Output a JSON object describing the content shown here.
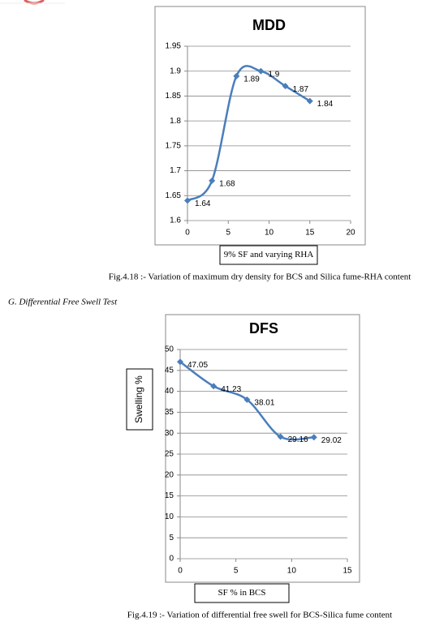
{
  "document": {
    "caption_1": "Fig.4.18 :- Variation of maximum dry density for BCS and Silica fume-RHA content",
    "section_heading": "G.   Differential Free Swell Test",
    "caption_2": "Fig.4.19 :- Variation of differential free swell for BCS-Silica fume content"
  },
  "chart_data": [
    {
      "type": "line",
      "title": "MDD",
      "x_label": "9% SF and varying RHA",
      "x": [
        0,
        3,
        6,
        9,
        12,
        15
      ],
      "values": [
        1.64,
        1.68,
        1.89,
        1.9,
        1.87,
        1.84
      ],
      "color": "#4a7ebb",
      "xlim": [
        0,
        20
      ],
      "xticks": [
        0,
        5,
        10,
        15,
        20
      ],
      "ylim": [
        1.6,
        1.95
      ],
      "yticks": [
        1.6,
        1.65,
        1.7,
        1.75,
        1.8,
        1.85,
        1.9,
        1.95
      ],
      "grid": true
    },
    {
      "type": "line",
      "title": "DFS",
      "x_label": "SF %  in BCS",
      "y_label": "Swelling %",
      "x": [
        0,
        3,
        6,
        9,
        12
      ],
      "values": [
        47.05,
        41.23,
        38.01,
        29.16,
        29.02
      ],
      "color": "#4a7ebb",
      "xlim": [
        0,
        15
      ],
      "xticks": [
        0,
        5,
        10,
        15
      ],
      "ylim": [
        0,
        50
      ],
      "yticks": [
        0,
        5,
        10,
        15,
        20,
        25,
        30,
        35,
        40,
        45,
        50
      ],
      "grid": true
    }
  ]
}
